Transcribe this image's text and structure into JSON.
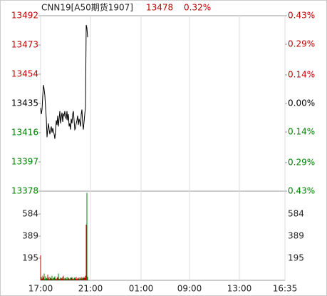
{
  "header": {
    "symbol": "CNN19[A50期货1907]",
    "price": "13478",
    "change": "0.32%"
  },
  "chart_data": [
    {
      "type": "line",
      "color": "#000000",
      "up_color": "#c00000",
      "down_color": "#008000",
      "flat_color": "#000000",
      "x": [
        0,
        1,
        2,
        3,
        4,
        5,
        6,
        7,
        8,
        9,
        10,
        11,
        12,
        13,
        14,
        15,
        16,
        17,
        18,
        19,
        20,
        21,
        22,
        23,
        24,
        25,
        26,
        27,
        28,
        29,
        30,
        31,
        32,
        33,
        34,
        35,
        36,
        37,
        38,
        39,
        40,
        41,
        42,
        43,
        44,
        45,
        46,
        47,
        48,
        49,
        50,
        51,
        52,
        53,
        54,
        55,
        56,
        57,
        58,
        59,
        60,
        61,
        62,
        63,
        64,
        65,
        66
      ],
      "values": [
        13432,
        13428,
        13431,
        13440,
        13447,
        13444,
        13440,
        13432,
        13425,
        13413,
        13418,
        13422,
        13418,
        13415,
        13418,
        13420,
        13416,
        13419,
        13417,
        13415,
        13412,
        13418,
        13424,
        13421,
        13427,
        13420,
        13425,
        13430,
        13422,
        13426,
        13429,
        13423,
        13428,
        13427,
        13430,
        13426,
        13425,
        13430,
        13424,
        13428,
        13420,
        13422,
        13418,
        13425,
        13422,
        13428,
        13430,
        13424,
        13418,
        13419,
        13422,
        13424,
        13427,
        13421,
        13425,
        13423,
        13420,
        13428,
        13431,
        13422,
        13418,
        13423,
        13428,
        13433,
        13486,
        13484,
        13478
      ],
      "xlim": [
        0,
        343
      ],
      "ylim": [
        13378,
        13492
      ],
      "yticks": [
        13492,
        13473,
        13454,
        13435,
        13416,
        13397,
        13378
      ],
      "y2lim": [
        -0.43,
        0.43
      ],
      "y2ticks": [
        {
          "value": 0.43,
          "label": "0.43%"
        },
        {
          "value": 0.29,
          "label": "0.29%"
        },
        {
          "value": 0.14,
          "label": "0.14%"
        },
        {
          "value": 0,
          "label": "0.00%"
        },
        {
          "value": -0.14,
          "label": "0.14%"
        },
        {
          "value": -0.29,
          "label": "0.29%"
        },
        {
          "value": -0.43,
          "label": "0.43%"
        }
      ]
    },
    {
      "type": "bar",
      "x": [
        0,
        1,
        2,
        3,
        4,
        5,
        6,
        7,
        8,
        9,
        10,
        11,
        12,
        13,
        14,
        15,
        16,
        17,
        18,
        19,
        20,
        21,
        22,
        23,
        24,
        25,
        26,
        27,
        28,
        29,
        30,
        31,
        32,
        33,
        34,
        35,
        36,
        37,
        38,
        39,
        40,
        41,
        42,
        43,
        44,
        45,
        46,
        47,
        48,
        49,
        50,
        51,
        52,
        53,
        54,
        55,
        56,
        57,
        58,
        59,
        60,
        61,
        62,
        63,
        64,
        65,
        66
      ],
      "values": [
        220,
        30,
        15,
        40,
        25,
        60,
        10,
        35,
        20,
        15,
        50,
        25,
        10,
        30,
        20,
        15,
        40,
        10,
        20,
        25,
        35,
        15,
        10,
        20,
        30,
        60,
        15,
        10,
        25,
        20,
        15,
        30,
        40,
        10,
        20,
        15,
        25,
        10,
        30,
        20,
        15,
        10,
        25,
        20,
        30,
        15,
        10,
        20,
        25,
        15,
        30,
        10,
        20,
        15,
        25,
        10,
        20,
        30,
        15,
        25,
        20,
        30,
        20,
        40,
        490,
        770,
        30
      ],
      "xlim": [
        0,
        343
      ],
      "xticks": [
        {
          "value": 0,
          "label": "17:00"
        },
        {
          "value": 70,
          "label": "21:00"
        },
        {
          "value": 141,
          "label": "01:00"
        },
        {
          "value": 209,
          "label": "09:00"
        },
        {
          "value": 279,
          "label": "13:00"
        },
        {
          "value": 343,
          "label": "16:35"
        }
      ],
      "ylim": [
        0,
        785
      ],
      "yticks": [
        195,
        389,
        584
      ]
    }
  ]
}
